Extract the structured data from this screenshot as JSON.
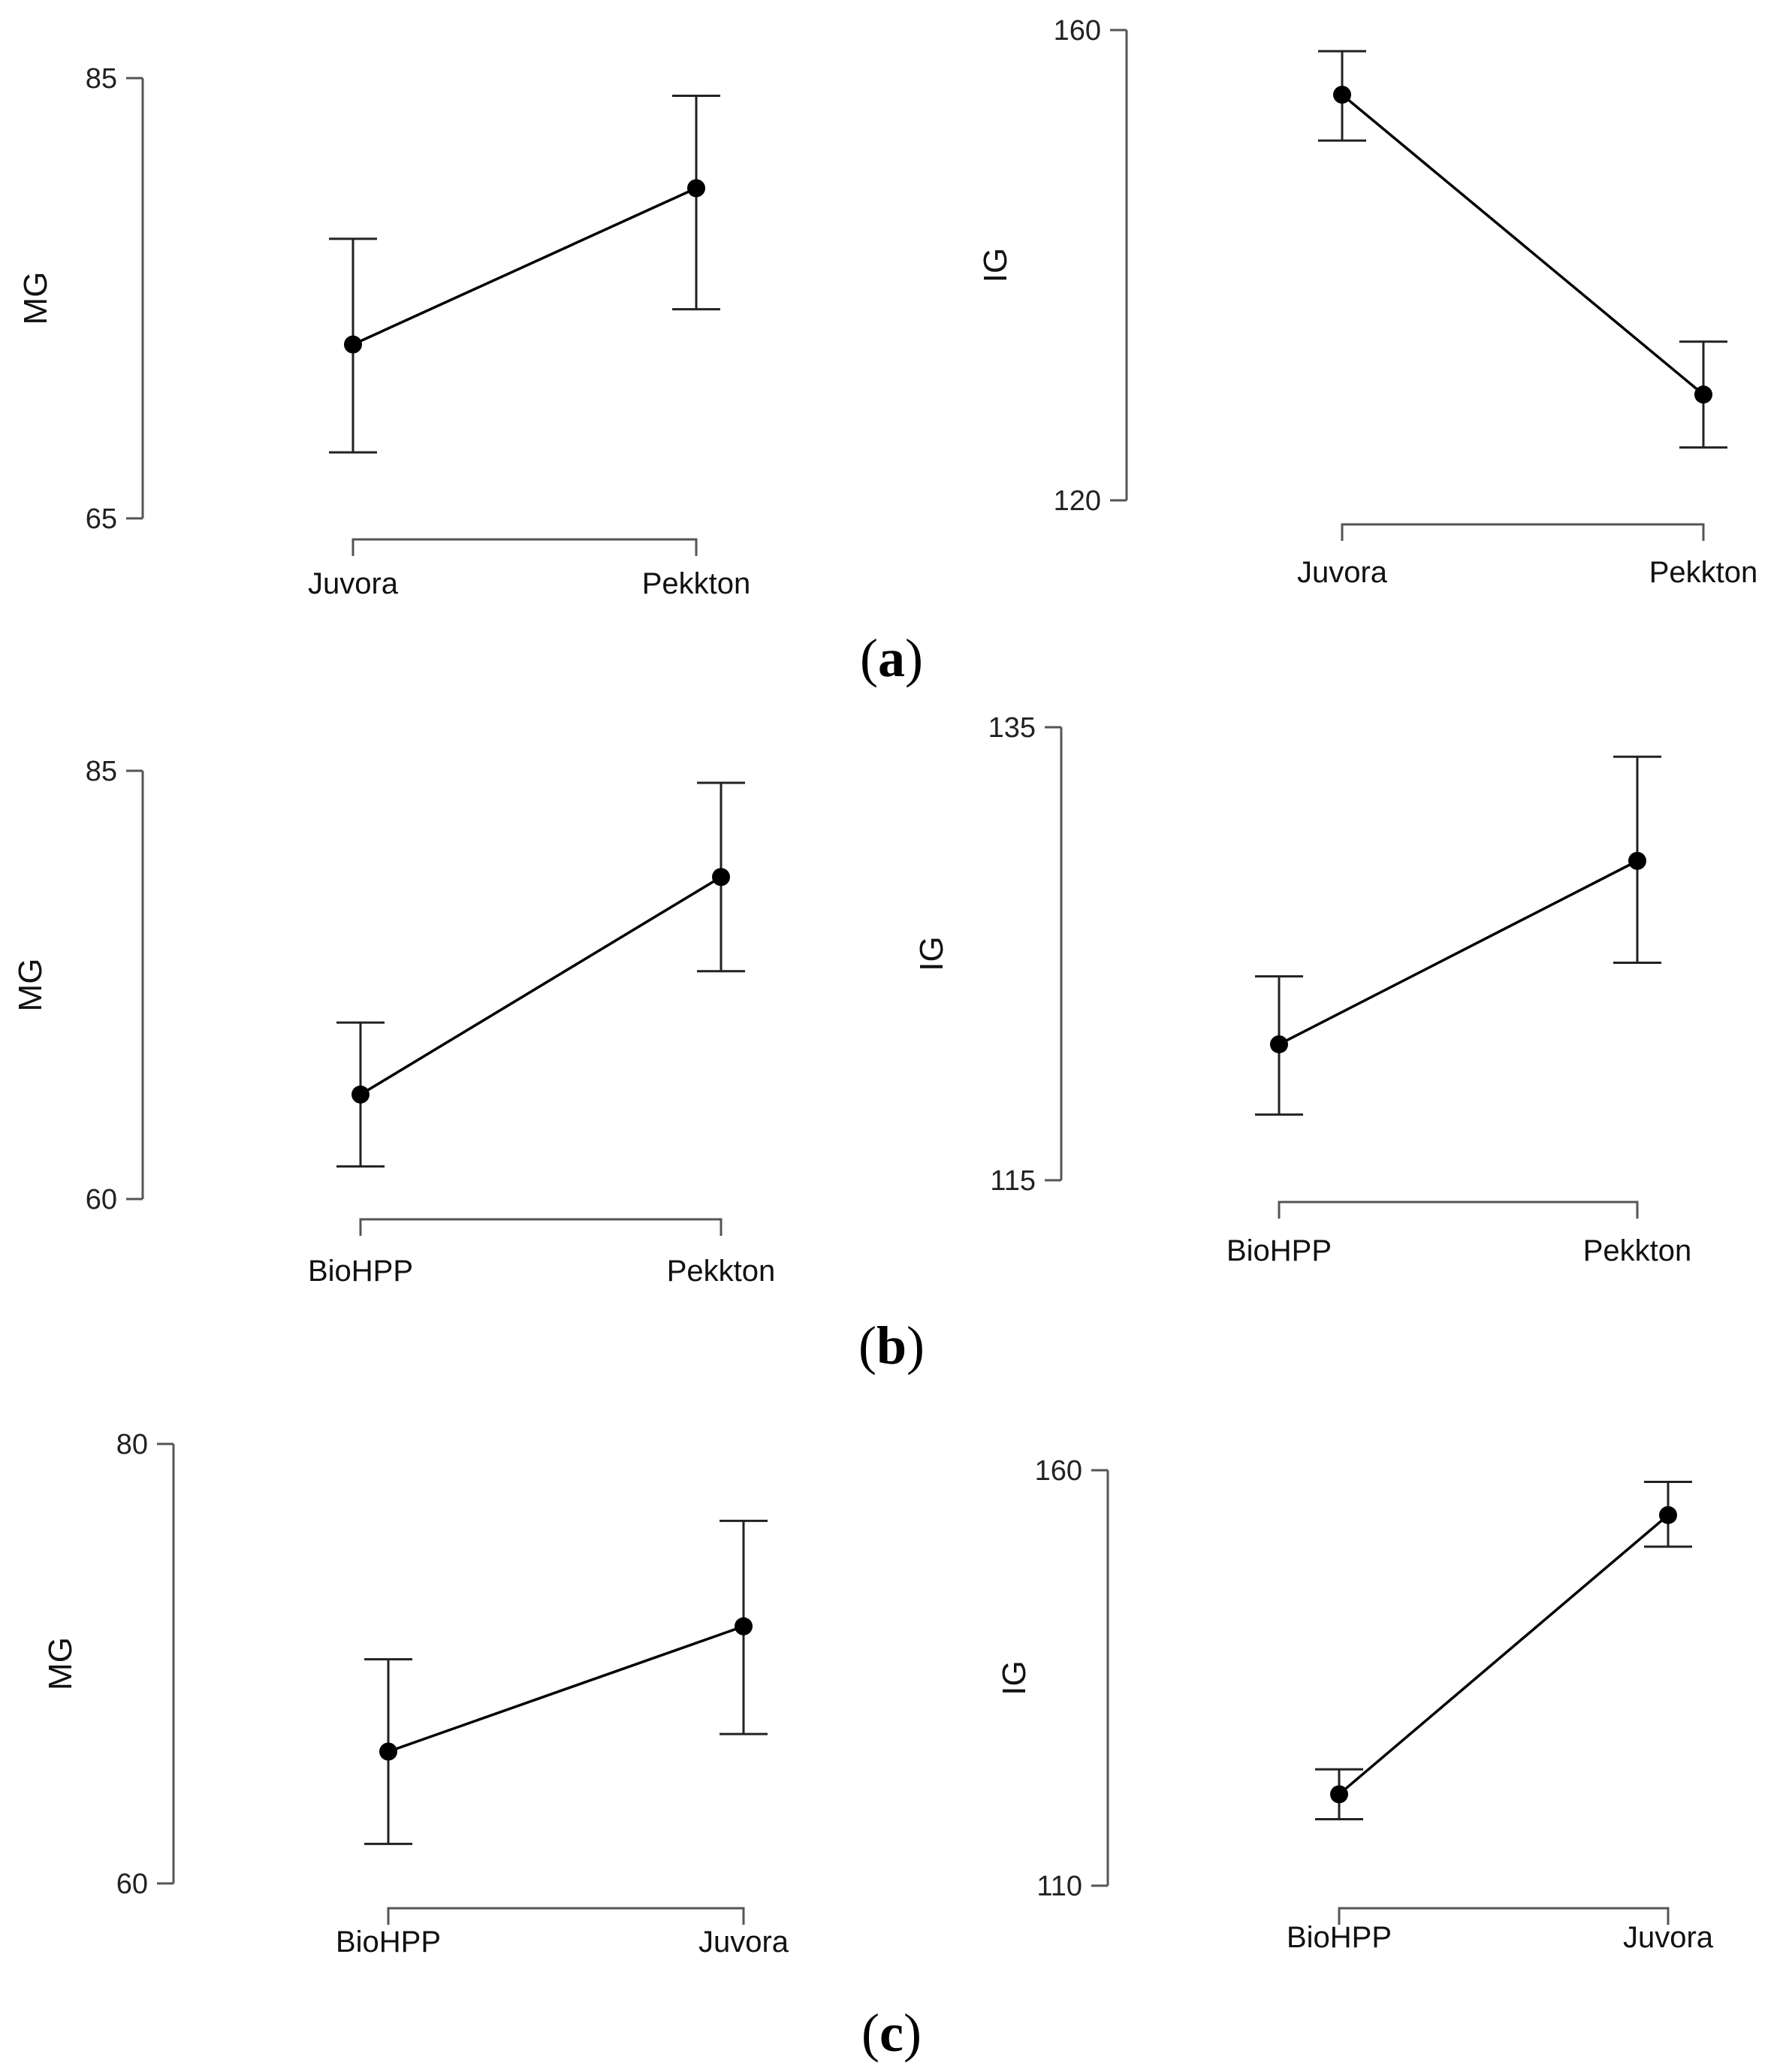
{
  "panels": [
    {
      "label": "a",
      "label_open": "(",
      "label_close": ")"
    },
    {
      "label": "b",
      "label_open": "(",
      "label_close": ")"
    },
    {
      "label": "c",
      "label_open": "(",
      "label_close": ")"
    }
  ],
  "chart_data": [
    {
      "type": "line",
      "panel": "a",
      "ylabel": "MG",
      "xlabel": "",
      "categories": [
        "Juvora",
        "Pekkton"
      ],
      "values": [
        72.9,
        80.0
      ],
      "err_low": [
        68.0,
        74.5
      ],
      "err_high": [
        77.7,
        84.2
      ],
      "ylim": [
        65,
        85
      ],
      "yticks": [
        "65",
        "85"
      ]
    },
    {
      "type": "line",
      "panel": "a",
      "ylabel": "IG",
      "xlabel": "",
      "categories": [
        "Juvora",
        "Pekkton"
      ],
      "values": [
        154.5,
        129.0
      ],
      "err_low": [
        150.6,
        124.5
      ],
      "err_high": [
        158.2,
        133.5
      ],
      "ylim": [
        120,
        160
      ],
      "yticks": [
        "120",
        "160"
      ]
    },
    {
      "type": "line",
      "panel": "b",
      "ylabel": "MG",
      "xlabel": "",
      "categories": [
        "BioHPP",
        "Pekkton"
      ],
      "values": [
        66.1,
        78.8
      ],
      "err_low": [
        61.9,
        73.3
      ],
      "err_high": [
        70.3,
        84.3
      ],
      "ylim": [
        60,
        85
      ],
      "yticks": [
        "60",
        "85"
      ]
    },
    {
      "type": "line",
      "panel": "b",
      "ylabel": "IG",
      "xlabel": "",
      "categories": [
        "BioHPP",
        "Pekkton"
      ],
      "values": [
        121.0,
        129.1
      ],
      "err_low": [
        117.9,
        124.6
      ],
      "err_high": [
        124.0,
        133.7
      ],
      "ylim": [
        115,
        135
      ],
      "yticks": [
        "115",
        "135"
      ]
    },
    {
      "type": "line",
      "panel": "c",
      "ylabel": "MG",
      "xlabel": "",
      "categories": [
        "BioHPP",
        "Juvora"
      ],
      "values": [
        66.0,
        71.7
      ],
      "err_low": [
        61.8,
        66.8
      ],
      "err_high": [
        70.2,
        76.5
      ],
      "ylim": [
        60,
        80
      ],
      "yticks": [
        "60",
        "80"
      ]
    },
    {
      "type": "line",
      "panel": "c",
      "ylabel": "IG",
      "xlabel": "",
      "categories": [
        "BioHPP",
        "Juvora"
      ],
      "values": [
        121.0,
        154.6
      ],
      "err_low": [
        118.0,
        150.8
      ],
      "err_high": [
        124.0,
        158.6
      ],
      "ylim": [
        110,
        160
      ],
      "yticks": [
        "110",
        "160"
      ]
    }
  ]
}
